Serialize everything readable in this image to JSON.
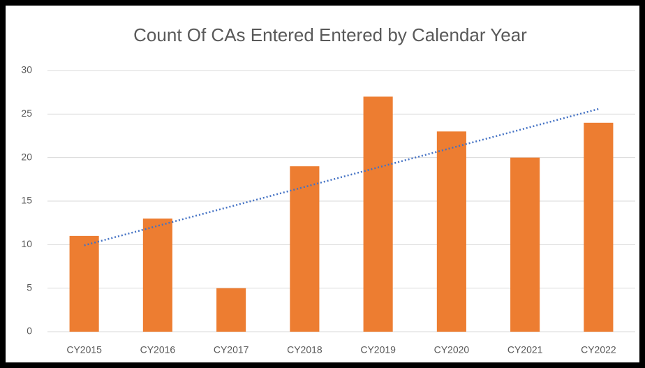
{
  "chart_data": {
    "type": "bar",
    "title": "Count Of CAs Entered Entered by Calendar Year",
    "categories": [
      "CY2015",
      "CY2016",
      "CY2017",
      "CY2018",
      "CY2019",
      "CY2020",
      "CY2021",
      "CY2022"
    ],
    "values": [
      11,
      13,
      5,
      19,
      27,
      23,
      20,
      24
    ],
    "color": "#ed7d31",
    "ylim": [
      0,
      30
    ],
    "yticks": [
      0,
      5,
      10,
      15,
      20,
      25,
      30
    ],
    "grid": true,
    "trendline": "linear",
    "trendline_color": "#4472c4"
  }
}
